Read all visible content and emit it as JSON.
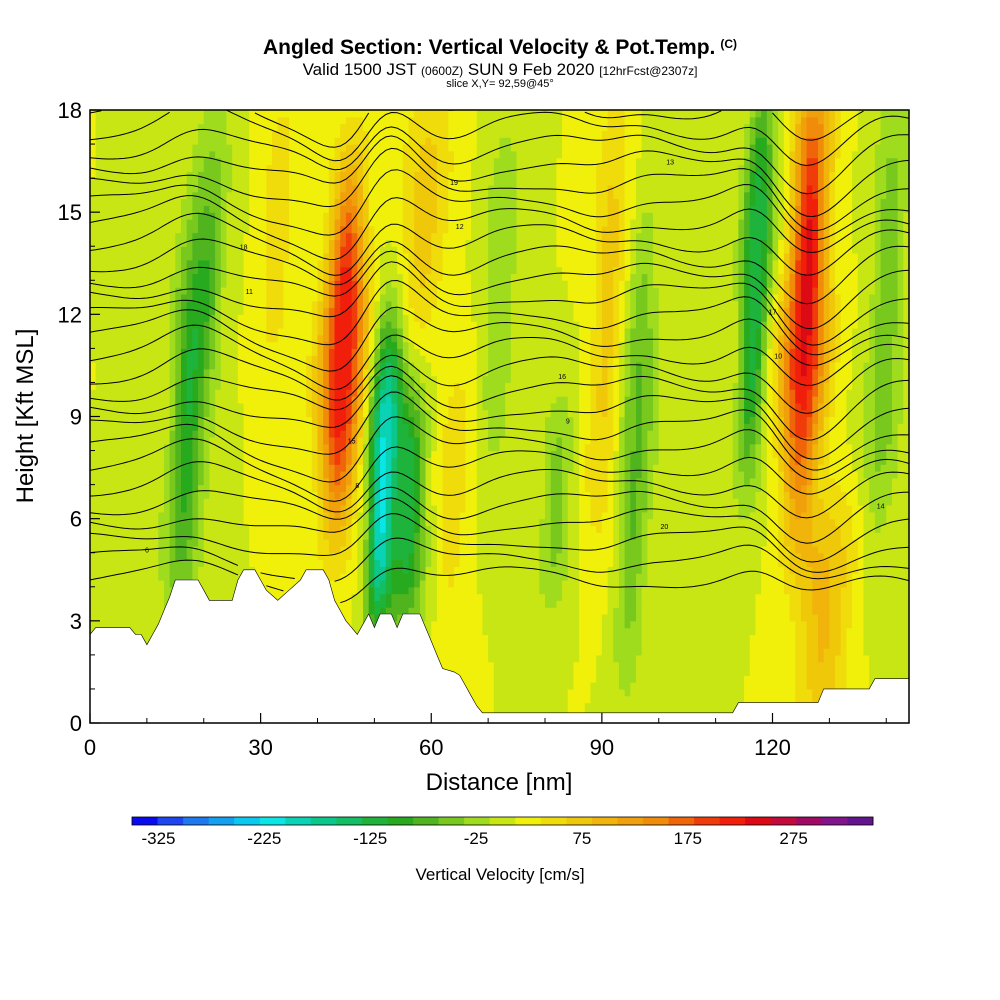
{
  "title": {
    "main": "Angled Section: Vertical Velocity & Pot.Temp.",
    "main_sup": "(C)",
    "valid_prefix": "Valid 1500 JST",
    "valid_zulu": "(0600Z)",
    "valid_date": "SUN 9 Feb 2020",
    "valid_fcst": "[12hrFcst@2307z]",
    "slice": "slice X,Y= 92,59@45°"
  },
  "chart_data": {
    "type": "heatmap",
    "xlabel": "Distance [nm]",
    "ylabel": "Height [Kft MSL]",
    "xlim": [
      0,
      144
    ],
    "ylim": [
      0,
      18
    ],
    "xticks": [
      0,
      30,
      60,
      90,
      120
    ],
    "yticks": [
      0,
      3,
      6,
      9,
      12,
      15,
      18
    ],
    "colorbar": {
      "label": "Vertical Velocity [cm/s]",
      "tick_values": [
        -325,
        -225,
        -125,
        -25,
        75,
        175,
        275
      ],
      "levels": [
        -350,
        -325,
        -300,
        -275,
        -250,
        -225,
        -200,
        -175,
        -150,
        -125,
        -100,
        -75,
        -50,
        -25,
        0,
        25,
        50,
        75,
        100,
        125,
        150,
        175,
        200,
        225,
        250,
        275,
        300,
        325,
        350
      ],
      "colors": [
        "#0a0af0",
        "#1e46f0",
        "#1e78f0",
        "#14a0f0",
        "#0ac8f0",
        "#0ae6e6",
        "#0ad2b4",
        "#0ac88c",
        "#14be64",
        "#1eb43c",
        "#28aa1e",
        "#50b41e",
        "#78c81e",
        "#a0dc1e",
        "#c8e614",
        "#f0f00a",
        "#f0dc0a",
        "#f0c80a",
        "#f0b40a",
        "#f0a00a",
        "#f08c0a",
        "#f0640a",
        "#f03c0a",
        "#f01e0a",
        "#dc0a14",
        "#c30a3c",
        "#a00a64",
        "#82148c",
        "#64148c"
      ]
    },
    "velocity_features": [
      {
        "x_center": 3,
        "x_width": 4,
        "z_low": 3,
        "z_high": 18,
        "value": 0
      },
      {
        "x_center": 17,
        "x_width": 3,
        "z_low": 4,
        "z_high": 14,
        "value": -110
      },
      {
        "x_center": 21,
        "x_width": 3,
        "z_low": 9,
        "z_high": 18,
        "value": -60
      },
      {
        "x_center": 33,
        "x_width": 3,
        "z_low": 11,
        "z_high": 18,
        "value": 40
      },
      {
        "x_center": 44.5,
        "x_width": 3.5,
        "z_low": 6.5,
        "z_high": 15.5,
        "value": 225
      },
      {
        "x_center": 51.5,
        "x_width": 2.5,
        "z_low": 3.5,
        "z_high": 11,
        "value": -230
      },
      {
        "x_center": 56,
        "x_width": 3,
        "z_low": 3.5,
        "z_high": 9,
        "value": -140
      },
      {
        "x_center": 59,
        "x_width": 4,
        "z_low": 12,
        "z_high": 18,
        "value": 60
      },
      {
        "x_center": 64,
        "x_width": 3,
        "z_low": 4,
        "z_high": 10,
        "value": 40
      },
      {
        "x_center": 72,
        "x_width": 3,
        "z_low": 8,
        "z_high": 17,
        "value": -50
      },
      {
        "x_center": 82,
        "x_width": 3,
        "z_low": 4,
        "z_high": 9,
        "value": -60
      },
      {
        "x_center": 91,
        "x_width": 3,
        "z_low": 6,
        "z_high": 18,
        "value": 60
      },
      {
        "x_center": 96,
        "x_width": 3,
        "z_low": 2,
        "z_high": 14,
        "value": -80
      },
      {
        "x_center": 117,
        "x_width": 2.5,
        "z_low": 8,
        "z_high": 18,
        "value": -150
      },
      {
        "x_center": 126,
        "x_width": 3.5,
        "z_low": 7,
        "z_high": 18,
        "value": 235
      },
      {
        "x_center": 129,
        "x_width": 5,
        "z_low": 0.5,
        "z_high": 6,
        "value": 80
      },
      {
        "x_center": 140,
        "x_width": 3,
        "z_low": 6,
        "z_high": 18,
        "value": -70
      }
    ],
    "contour_labels": [
      "6",
      "8",
      "9",
      "10",
      "11",
      "12",
      "13",
      "14",
      "15",
      "16",
      "17",
      "18",
      "19",
      "20"
    ],
    "terrain_kft": [
      [
        0,
        2.6
      ],
      [
        1,
        2.8
      ],
      [
        7,
        2.8
      ],
      [
        8,
        2.6
      ],
      [
        9,
        2.6
      ],
      [
        10,
        2.3
      ],
      [
        11,
        2.6
      ],
      [
        12,
        2.9
      ],
      [
        13,
        3.3
      ],
      [
        14,
        3.7
      ],
      [
        15,
        4.2
      ],
      [
        19,
        4.2
      ],
      [
        20,
        3.9
      ],
      [
        21,
        3.6
      ],
      [
        25,
        3.6
      ],
      [
        26,
        4.2
      ],
      [
        27,
        4.5
      ],
      [
        29,
        4.5
      ],
      [
        30,
        4.2
      ],
      [
        31,
        3.9
      ],
      [
        33,
        3.6
      ],
      [
        35,
        3.9
      ],
      [
        37,
        4.2
      ],
      [
        38,
        4.5
      ],
      [
        41,
        4.5
      ],
      [
        42,
        4.2
      ],
      [
        43,
        3.6
      ],
      [
        44,
        3.3
      ],
      [
        45,
        3.0
      ],
      [
        46,
        2.8
      ],
      [
        47,
        2.6
      ],
      [
        48,
        2.9
      ],
      [
        49,
        3.2
      ],
      [
        50,
        2.8
      ],
      [
        51,
        3.2
      ],
      [
        53,
        3.2
      ],
      [
        54,
        2.8
      ],
      [
        55,
        3.2
      ],
      [
        58,
        3.2
      ],
      [
        59,
        2.8
      ],
      [
        60,
        2.4
      ],
      [
        61,
        2.0
      ],
      [
        62,
        1.6
      ],
      [
        64,
        1.5
      ],
      [
        65,
        1.4
      ],
      [
        66,
        1.1
      ],
      [
        67,
        0.8
      ],
      [
        68,
        0.5
      ],
      [
        69,
        0.3
      ],
      [
        113,
        0.3
      ],
      [
        114,
        0.6
      ],
      [
        128,
        0.6
      ],
      [
        129,
        1.0
      ],
      [
        137,
        1.0
      ],
      [
        138,
        1.3
      ],
      [
        144,
        1.3
      ]
    ]
  }
}
